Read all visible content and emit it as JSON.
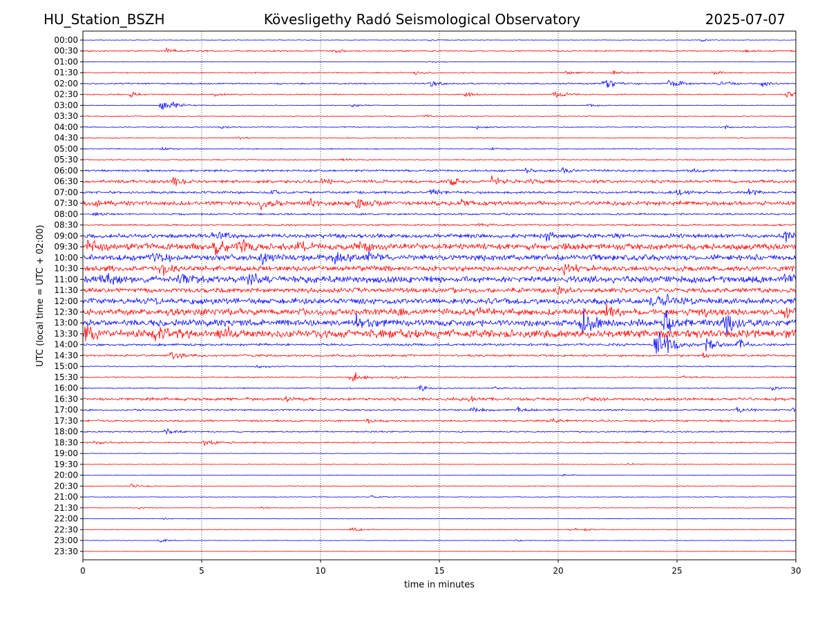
{
  "header": {
    "station": "HU_Station_BSZH",
    "observatory": "Kövesligethy Radó Seismological Observatory",
    "date": "2025-07-07"
  },
  "chart_data": {
    "type": "line",
    "subtype": "helicorder",
    "xlabel": "time in minutes",
    "ylabel": "UTC (local time = UTC + 02:00)",
    "xlim": [
      0,
      30
    ],
    "x_ticks": [
      0,
      5,
      10,
      15,
      20,
      25,
      30
    ],
    "vertical_gridlines": "dotted",
    "colors": {
      "even_rows": "#0000ff",
      "odd_rows": "#ff0000"
    },
    "rows": [
      {
        "label": "00:00",
        "color": "#0000ff",
        "noise": 0.5,
        "events": [
          [
            14.6,
            2
          ],
          [
            26,
            2
          ]
        ]
      },
      {
        "label": "00:30",
        "color": "#ff0000",
        "noise": 1.2,
        "events": [
          [
            3.5,
            5
          ],
          [
            10.5,
            3
          ],
          [
            27.8,
            3
          ]
        ]
      },
      {
        "label": "01:00",
        "color": "#0000ff",
        "noise": 0.5,
        "events": [
          [
            14.5,
            2
          ]
        ]
      },
      {
        "label": "01:30",
        "color": "#ff0000",
        "noise": 1.0,
        "events": [
          [
            14,
            3
          ],
          [
            20.3,
            4
          ],
          [
            22.3,
            4
          ],
          [
            26.5,
            3
          ]
        ]
      },
      {
        "label": "02:00",
        "color": "#0000ff",
        "noise": 1.2,
        "events": [
          [
            14.6,
            5
          ],
          [
            21.9,
            14
          ],
          [
            24.7,
            12
          ],
          [
            26.8,
            7
          ],
          [
            28.6,
            5
          ]
        ]
      },
      {
        "label": "02:30",
        "color": "#ff0000",
        "noise": 1.0,
        "events": [
          [
            2,
            5
          ],
          [
            5.5,
            3
          ],
          [
            16.1,
            4
          ],
          [
            19.8,
            9
          ],
          [
            29.6,
            8
          ]
        ]
      },
      {
        "label": "03:00",
        "color": "#0000ff",
        "noise": 0.6,
        "events": [
          [
            3.3,
            9
          ],
          [
            3.8,
            5
          ],
          [
            11.3,
            3
          ],
          [
            21.3,
            3
          ]
        ]
      },
      {
        "label": "03:30",
        "color": "#ff0000",
        "noise": 0.7,
        "events": [
          [
            14.3,
            3
          ]
        ]
      },
      {
        "label": "04:00",
        "color": "#0000ff",
        "noise": 0.8,
        "events": [
          [
            5.8,
            3
          ],
          [
            16.5,
            3
          ],
          [
            27,
            3
          ]
        ]
      },
      {
        "label": "04:30",
        "color": "#ff0000",
        "noise": 0.8,
        "events": [
          [
            6.5,
            2
          ]
        ]
      },
      {
        "label": "05:00",
        "color": "#0000ff",
        "noise": 0.9,
        "events": [
          [
            3.3,
            2
          ],
          [
            17.2,
            3
          ]
        ]
      },
      {
        "label": "05:30",
        "color": "#ff0000",
        "noise": 1.0,
        "events": [
          [
            10.8,
            3
          ]
        ]
      },
      {
        "label": "06:00",
        "color": "#0000ff",
        "noise": 1.8,
        "events": [
          [
            18.5,
            5
          ],
          [
            20.1,
            5
          ],
          [
            25.5,
            5
          ]
        ]
      },
      {
        "label": "06:30",
        "color": "#ff0000",
        "noise": 2.5,
        "events": [
          [
            3.8,
            9
          ],
          [
            10,
            6
          ],
          [
            15.3,
            9
          ],
          [
            17.2,
            9
          ],
          [
            18.9,
            6
          ]
        ]
      },
      {
        "label": "07:00",
        "color": "#0000ff",
        "noise": 2.0,
        "events": [
          [
            8,
            5
          ],
          [
            14.6,
            7
          ],
          [
            25,
            5
          ],
          [
            28,
            6
          ]
        ]
      },
      {
        "label": "07:30",
        "color": "#ff0000",
        "noise": 3.5,
        "events": [
          [
            0.5,
            6
          ],
          [
            7.5,
            9
          ],
          [
            9.5,
            9
          ],
          [
            11.5,
            8
          ],
          [
            15.8,
            7
          ]
        ]
      },
      {
        "label": "08:00",
        "color": "#0000ff",
        "noise": 1.5,
        "events": [
          [
            0.5,
            3
          ]
        ]
      },
      {
        "label": "08:30",
        "color": "#ff0000",
        "noise": 1.5,
        "events": [
          [
            16.7,
            3
          ]
        ]
      },
      {
        "label": "09:00",
        "color": "#0000ff",
        "noise": 3.5,
        "events": [
          [
            5.5,
            7
          ],
          [
            19.5,
            7
          ],
          [
            29.5,
            9
          ]
        ]
      },
      {
        "label": "09:30",
        "color": "#ff0000",
        "noise": 5.5,
        "events": [
          [
            0.2,
            13
          ],
          [
            5.5,
            16
          ],
          [
            6.5,
            14
          ],
          [
            9,
            9
          ],
          [
            11.5,
            8
          ]
        ]
      },
      {
        "label": "10:00",
        "color": "#0000ff",
        "noise": 5.0,
        "events": [
          [
            3,
            13
          ],
          [
            7.5,
            9
          ],
          [
            10.5,
            13
          ],
          [
            12,
            9
          ]
        ]
      },
      {
        "label": "10:30",
        "color": "#ff0000",
        "noise": 4.5,
        "events": [
          [
            3.3,
            11
          ],
          [
            20.2,
            9
          ]
        ]
      },
      {
        "label": "11:00",
        "color": "#0000ff",
        "noise": 5.5,
        "events": [
          [
            0.8,
            11
          ],
          [
            4,
            11
          ],
          [
            7,
            9
          ],
          [
            29.5,
            7
          ]
        ]
      },
      {
        "label": "11:30",
        "color": "#ff0000",
        "noise": 4.0,
        "events": [
          [
            20,
            6
          ]
        ]
      },
      {
        "label": "12:00",
        "color": "#0000ff",
        "noise": 5.0,
        "events": [
          [
            23.8,
            9
          ],
          [
            24.5,
            11
          ]
        ]
      },
      {
        "label": "12:30",
        "color": "#ff0000",
        "noise": 5.5,
        "events": [
          [
            16.5,
            7
          ],
          [
            22,
            9
          ],
          [
            26,
            9
          ],
          [
            29.5,
            8
          ]
        ]
      },
      {
        "label": "13:00",
        "color": "#0000ff",
        "noise": 5.5,
        "events": [
          [
            11.5,
            9
          ],
          [
            21,
            24
          ],
          [
            24.5,
            24
          ],
          [
            27,
            18
          ]
        ]
      },
      {
        "label": "13:30",
        "color": "#ff0000",
        "noise": 7.0,
        "events": [
          [
            0.1,
            18
          ],
          [
            3,
            12
          ],
          [
            6,
            9
          ]
        ]
      },
      {
        "label": "14:00",
        "color": "#0000ff",
        "noise": 2.0,
        "events": [
          [
            24.1,
            30
          ],
          [
            24.5,
            22
          ],
          [
            26.2,
            14
          ],
          [
            27.6,
            9
          ]
        ]
      },
      {
        "label": "14:30",
        "color": "#ff0000",
        "noise": 1.8,
        "events": [
          [
            3.7,
            7
          ],
          [
            26.1,
            3
          ]
        ]
      },
      {
        "label": "15:00",
        "color": "#0000ff",
        "noise": 1.0,
        "events": [
          [
            7.3,
            3
          ]
        ]
      },
      {
        "label": "15:30",
        "color": "#ff0000",
        "noise": 1.0,
        "events": [
          [
            11.3,
            12
          ],
          [
            13.1,
            3
          ],
          [
            25.2,
            3
          ]
        ]
      },
      {
        "label": "16:00",
        "color": "#0000ff",
        "noise": 1.0,
        "events": [
          [
            14.2,
            7
          ],
          [
            17.3,
            3
          ],
          [
            29,
            3
          ]
        ]
      },
      {
        "label": "16:30",
        "color": "#ff0000",
        "noise": 2.5,
        "events": [
          [
            8.5,
            5
          ],
          [
            16.3,
            3
          ],
          [
            21.2,
            3
          ]
        ]
      },
      {
        "label": "17:00",
        "color": "#0000ff",
        "noise": 1.5,
        "events": [
          [
            16.4,
            5
          ],
          [
            18.3,
            4
          ],
          [
            27.5,
            5
          ],
          [
            29.8,
            3
          ]
        ]
      },
      {
        "label": "17:30",
        "color": "#ff0000",
        "noise": 1.5,
        "events": [
          [
            12,
            5
          ],
          [
            19.6,
            5
          ]
        ]
      },
      {
        "label": "18:00",
        "color": "#0000ff",
        "noise": 1.2,
        "events": [
          [
            3.5,
            5
          ]
        ]
      },
      {
        "label": "18:30",
        "color": "#ff0000",
        "noise": 1.2,
        "events": [
          [
            5.1,
            6
          ],
          [
            0.5,
            3
          ]
        ]
      },
      {
        "label": "19:00",
        "color": "#0000ff",
        "noise": 0.5,
        "events": []
      },
      {
        "label": "19:30",
        "color": "#ff0000",
        "noise": 0.6,
        "events": [
          [
            22.9,
            2
          ]
        ]
      },
      {
        "label": "20:00",
        "color": "#0000ff",
        "noise": 0.5,
        "events": [
          [
            20.2,
            2
          ]
        ]
      },
      {
        "label": "20:30",
        "color": "#ff0000",
        "noise": 0.7,
        "events": [
          [
            2,
            3
          ]
        ]
      },
      {
        "label": "21:00",
        "color": "#0000ff",
        "noise": 0.6,
        "events": [
          [
            12.1,
            3
          ]
        ]
      },
      {
        "label": "21:30",
        "color": "#ff0000",
        "noise": 0.5,
        "events": [
          [
            2.3,
            3
          ],
          [
            7.5,
            2
          ]
        ]
      },
      {
        "label": "22:00",
        "color": "#0000ff",
        "noise": 0.5,
        "events": [
          [
            3.4,
            2
          ]
        ]
      },
      {
        "label": "22:30",
        "color": "#ff0000",
        "noise": 0.6,
        "events": [
          [
            11.3,
            4
          ],
          [
            20.5,
            3
          ],
          [
            21.1,
            2
          ]
        ]
      },
      {
        "label": "23:00",
        "color": "#0000ff",
        "noise": 0.5,
        "events": [
          [
            3.2,
            4
          ],
          [
            18.2,
            2
          ]
        ]
      },
      {
        "label": "23:30",
        "color": "#ff0000",
        "noise": 0.4,
        "events": []
      }
    ]
  }
}
